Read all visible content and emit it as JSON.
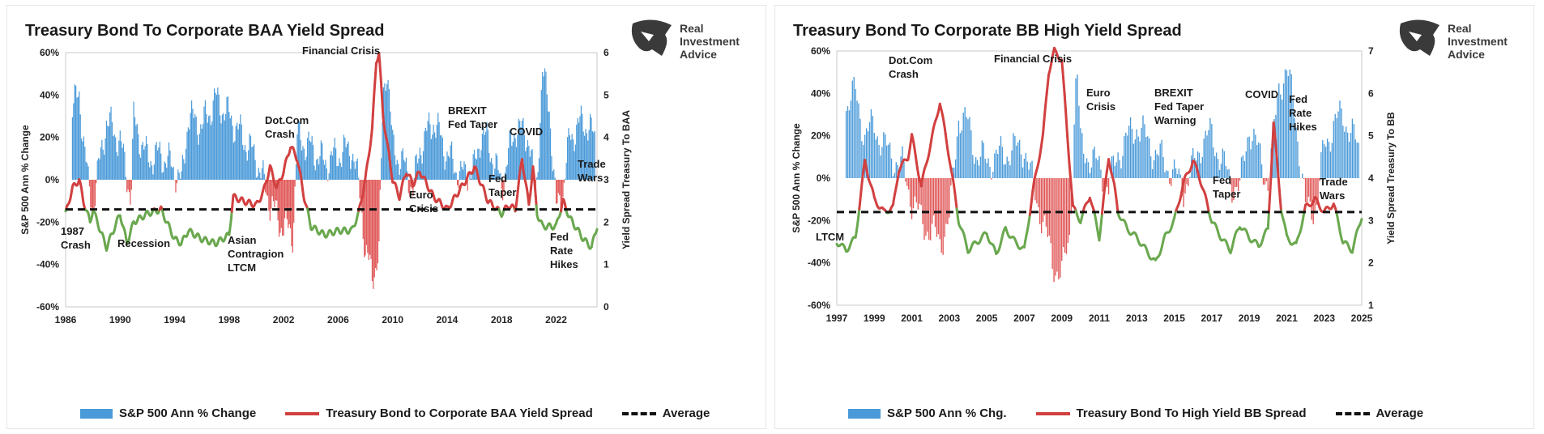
{
  "panels": [
    {
      "title": "Treasury Bond To Corporate BAA Yield Spread",
      "logo": {
        "line1": "Real",
        "line2": "Investment",
        "line3": "Advice"
      },
      "legend": {
        "bar": "S&P 500 Ann % Change",
        "line": "Treasury Bond to Corporate BAA Yield Spread",
        "avg": "Average"
      }
    },
    {
      "title": "Treasury Bond To Corporate BB High Yield Spread",
      "logo": {
        "line1": "Real",
        "line2": "Investment",
        "line3": "Advice"
      },
      "legend": {
        "bar": "S&P 500 Ann % Chg.",
        "line": "Treasury Bond To High Yield BB Spread",
        "avg": "Average"
      }
    }
  ],
  "colors": {
    "bar_pos": "#4a9ad9",
    "bar_neg": "#e05555",
    "spread_high": "#d24040",
    "spread_low": "#6aa84f",
    "avg": "#111111"
  },
  "chart_data": [
    {
      "type": "bar+line",
      "title": "Treasury Bond To Corporate BAA Yield Spread",
      "ylabel": "S&P 500 Ann % Change",
      "ylabel_right": "Yield Spread Treasury To BAA",
      "xlim": [
        1986,
        2025
      ],
      "ylim": [
        -60,
        60
      ],
      "ylim_right": [
        0,
        6
      ],
      "xticks": [
        "1986",
        "1990",
        "1994",
        "1998",
        "2002",
        "2006",
        "2010",
        "2014",
        "2018",
        "2022"
      ],
      "yticks": [
        "60%",
        "40%",
        "20%",
        "0%",
        "-20%",
        "-40%",
        "-60%"
      ],
      "yticks_right": [
        "6",
        "5",
        "4",
        "3",
        "2",
        "1",
        "0"
      ],
      "average": 2.3,
      "sp500_ann_change": {
        "x": [
          1986,
          1987,
          1987.7,
          1988,
          1989,
          1990,
          1990.8,
          1991,
          1992,
          1993,
          1994,
          1994.5,
          1995,
          1996,
          1997,
          1998,
          1999,
          2000,
          2000.7,
          2001,
          2001.7,
          2002,
          2002.7,
          2003,
          2004,
          2005,
          2006,
          2007,
          2007.7,
          2008,
          2008.5,
          2009,
          2009.3,
          2009.6,
          2010,
          2011,
          2011.5,
          2012,
          2013,
          2014,
          2015,
          2016,
          2016.5,
          2017,
          2018,
          2019,
          2020,
          2020.5,
          2021,
          2021.5,
          2022,
          2022.5,
          2023,
          2024,
          2025
        ],
        "values": [
          28,
          40,
          -5,
          -12,
          28,
          18,
          -8,
          28,
          10,
          12,
          5,
          -2,
          30,
          25,
          38,
          30,
          20,
          10,
          -5,
          -10,
          -20,
          -22,
          -25,
          20,
          15,
          8,
          12,
          15,
          -10,
          -35,
          -45,
          -35,
          40,
          55,
          15,
          5,
          -5,
          15,
          28,
          12,
          2,
          5,
          22,
          18,
          -3,
          25,
          20,
          -10,
          50,
          35,
          -15,
          -5,
          20,
          28,
          18
        ]
      },
      "spread": {
        "x": [
          1986,
          1986.5,
          1987,
          1987.3,
          1987.8,
          1988,
          1989,
          1989.5,
          1990,
          1990.5,
          1991,
          1992,
          1993,
          1994,
          1994.5,
          1995,
          1996,
          1997,
          1997.5,
          1998,
          1998.3,
          1999,
          2000,
          2000.5,
          2001,
          2001.5,
          2002,
          2002.5,
          2003,
          2003.5,
          2004,
          2005,
          2006,
          2007,
          2007.5,
          2008,
          2008.5,
          2008.8,
          2009,
          2009.3,
          2010,
          2010.5,
          2011,
          2011.5,
          2012,
          2013,
          2014,
          2015,
          2016,
          2016.5,
          2017,
          2018,
          2018.5,
          2019,
          2019.5,
          2020,
          2020.3,
          2020.6,
          2021,
          2022,
          2022.5,
          2023,
          2024,
          2024.6,
          2025
        ],
        "values": [
          2.2,
          2.8,
          3.0,
          2.5,
          2.0,
          2.3,
          1.4,
          1.8,
          2.2,
          1.5,
          2.0,
          2.2,
          2.3,
          1.6,
          1.5,
          1.8,
          1.6,
          1.5,
          1.6,
          1.7,
          2.6,
          2.5,
          2.4,
          2.7,
          3.3,
          2.8,
          3.2,
          3.8,
          3.5,
          2.6,
          1.9,
          1.7,
          1.8,
          1.8,
          2.2,
          3.0,
          4.2,
          5.8,
          6.0,
          4.5,
          3.0,
          2.6,
          3.2,
          2.9,
          3.2,
          2.6,
          2.3,
          2.8,
          3.3,
          2.9,
          2.5,
          2.2,
          2.4,
          2.3,
          3.5,
          2.4,
          3.3,
          2.2,
          1.9,
          1.9,
          2.5,
          2.1,
          1.6,
          1.4,
          1.9
        ]
      },
      "annotations": [
        "1987 Crash",
        "Recession",
        "Asian Contragion LTCM",
        "Dot.Com Crash",
        "Financial Crisis",
        "Euro Crisis",
        "BREXIT Fed Taper",
        "Fed Taper",
        "COVID",
        "Fed Rate Hikes",
        "Trade Wars"
      ]
    },
    {
      "type": "bar+line",
      "title": "Treasury Bond To Corporate BB High Yield Spread",
      "ylabel": "S&P 500 Ann % Change",
      "ylabel_right": "Yield Spread Treasury To BB",
      "xlim": [
        1997,
        2025
      ],
      "ylim": [
        -60,
        60
      ],
      "ylim_right": [
        1,
        7
      ],
      "xticks": [
        "1997",
        "1999",
        "2001",
        "2003",
        "2005",
        "2007",
        "2009",
        "2011",
        "2013",
        "2015",
        "2017",
        "2019",
        "2021",
        "2023",
        "2025"
      ],
      "yticks": [
        "60%",
        "40%",
        "20%",
        "0%",
        "-20%",
        "-40%",
        "-60%"
      ],
      "yticks_right": [
        "7",
        "6",
        "5",
        "4",
        "3",
        "2",
        "1"
      ],
      "average": 3.2,
      "sp500_ann_change": {
        "x": [
          1997,
          1997.5,
          1998,
          1998.5,
          1999,
          1999.5,
          2000,
          2000.5,
          2001,
          2001.5,
          2002,
          2002.5,
          2003,
          2003.5,
          2004,
          2004.5,
          2005,
          2006,
          2007,
          2007.5,
          2008,
          2008.5,
          2009,
          2009.4,
          2009.8,
          2010,
          2011,
          2011.5,
          2012,
          2013,
          2014,
          2015,
          2015.5,
          2016,
          2016.5,
          2017,
          2018,
          2018.5,
          2019,
          2020,
          2020.3,
          2020.6,
          2021,
          2021.4,
          2022,
          2022.6,
          2023,
          2023.5,
          2024,
          2025
        ],
        "values": [
          25,
          35,
          40,
          20,
          25,
          15,
          10,
          5,
          -10,
          -20,
          -25,
          -30,
          -20,
          30,
          25,
          10,
          8,
          12,
          15,
          -5,
          -20,
          -40,
          -45,
          -30,
          55,
          15,
          5,
          -5,
          12,
          25,
          12,
          2,
          -5,
          5,
          18,
          20,
          -2,
          -5,
          25,
          -2,
          20,
          45,
          50,
          35,
          -15,
          -12,
          15,
          25,
          30,
          10
        ]
      },
      "spread": {
        "x": [
          1997,
          1997.5,
          1998,
          1998.5,
          1999,
          1999.5,
          2000,
          2000.3,
          2000.8,
          2001,
          2001.5,
          2002,
          2002.5,
          2003,
          2003.5,
          2004,
          2004.5,
          2005,
          2005.5,
          2006,
          2006.5,
          2007,
          2007.5,
          2008,
          2008.3,
          2008.6,
          2009,
          2009.3,
          2009.6,
          2010,
          2010.5,
          2011,
          2011.5,
          2011.8,
          2012,
          2012.5,
          2013,
          2013.5,
          2014,
          2014.5,
          2015,
          2015.5,
          2016,
          2016.3,
          2017,
          2017.5,
          2018,
          2018.5,
          2019,
          2019.5,
          2020,
          2020.3,
          2020.7,
          2021,
          2021.5,
          2022,
          2022.5,
          2023,
          2023.5,
          2024,
          2024.5,
          2025
        ],
        "values": [
          2.5,
          2.3,
          2.6,
          4.4,
          3.5,
          3.2,
          3.3,
          4.2,
          4.5,
          5.0,
          3.8,
          4.8,
          5.8,
          4.5,
          3.0,
          2.3,
          2.5,
          2.7,
          2.2,
          2.8,
          2.5,
          2.3,
          3.8,
          5.0,
          6.5,
          7.0,
          6.8,
          5.0,
          3.3,
          3.0,
          3.6,
          2.6,
          4.5,
          3.8,
          3.2,
          2.8,
          2.6,
          2.3,
          2.0,
          2.6,
          3.0,
          3.9,
          4.4,
          4.1,
          3.0,
          2.6,
          2.3,
          2.9,
          2.6,
          2.4,
          2.8,
          5.3,
          3.3,
          2.6,
          2.4,
          3.3,
          3.5,
          3.2,
          3.4,
          2.5,
          2.3,
          3.1
        ]
      },
      "annotations": [
        "LTCM",
        "Dot.Com Crash",
        "Financial Crisis",
        "Euro Crisis",
        "BREXIT Fed Taper Warning",
        "Fed Taper",
        "COVID",
        "Fed Rate Hikes",
        "Trade Wars"
      ]
    }
  ]
}
